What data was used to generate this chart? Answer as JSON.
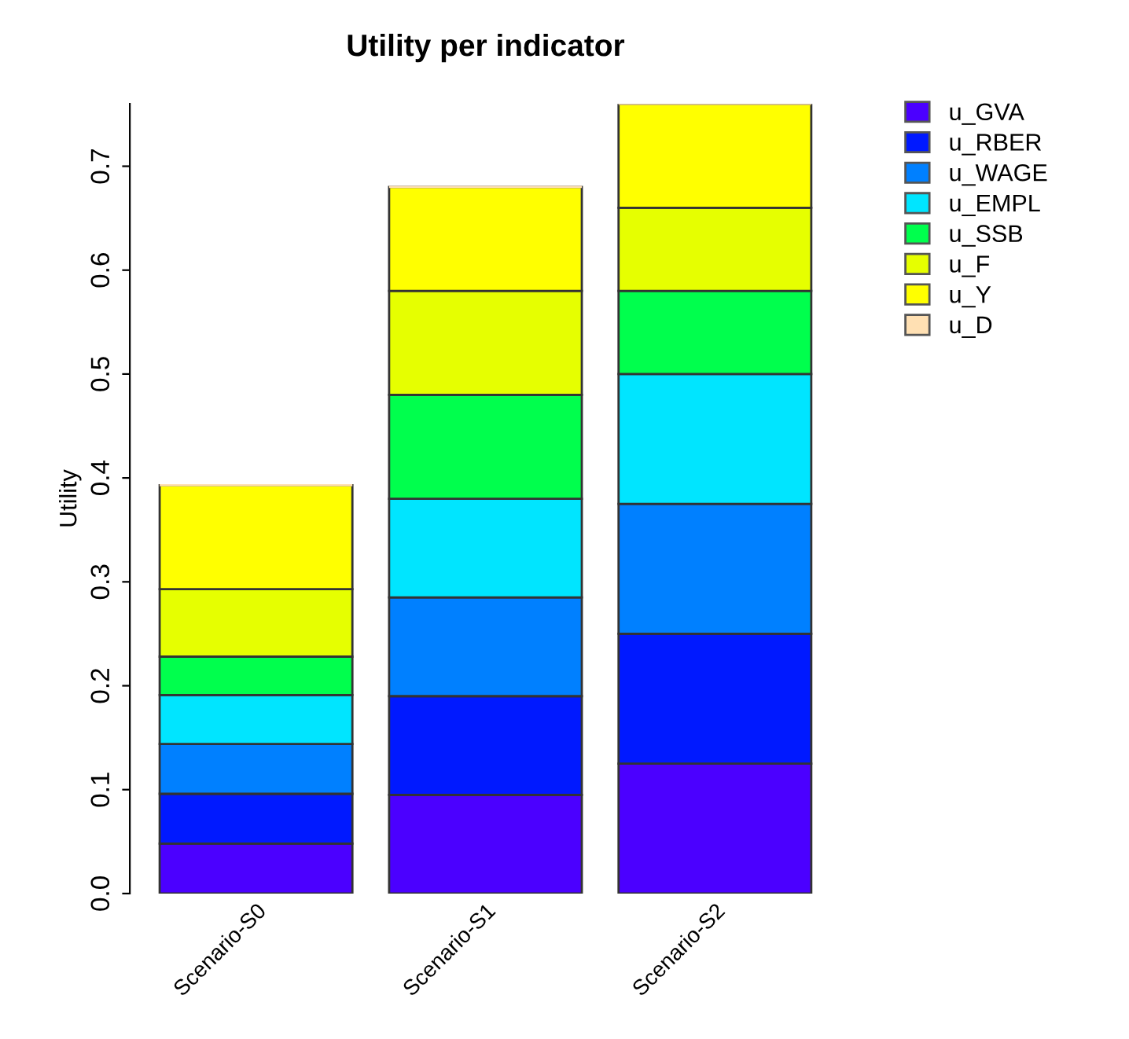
{
  "chart_data": {
    "type": "bar",
    "title": "Utility per indicator",
    "ylabel": "Utility",
    "categories": [
      "Scenario-S0",
      "Scenario-S1",
      "Scenario-S2"
    ],
    "stacked": true,
    "ylim": [
      0,
      0.76
    ],
    "yticks": [
      {
        "value": 0,
        "label": "0.0"
      },
      0.1,
      0.2,
      0.3,
      0.4,
      0.5,
      0.6,
      0.7
    ],
    "grid": false,
    "legend": "right",
    "series": [
      {
        "name": "u_GVA",
        "color": "#4b00ff",
        "values": [
          0.048,
          0.095,
          0.125
        ]
      },
      {
        "name": "u_RBER",
        "color": "#0019ff",
        "values": [
          0.048,
          0.095,
          0.125
        ]
      },
      {
        "name": "u_WAGE",
        "color": "#0080ff",
        "values": [
          0.048,
          0.095,
          0.125
        ]
      },
      {
        "name": "u_EMPL",
        "color": "#00e5ff",
        "values": [
          0.047,
          0.095,
          0.125
        ]
      },
      {
        "name": "u_SSB",
        "color": "#00ff4d",
        "values": [
          0.037,
          0.1,
          0.08
        ]
      },
      {
        "name": "u_F",
        "color": "#e6ff00",
        "values": [
          0.065,
          0.1,
          0.08
        ]
      },
      {
        "name": "u_Y",
        "color": "#ffff00",
        "values": [
          0.1,
          0.1,
          0.1
        ]
      },
      {
        "name": "u_D",
        "color": "#ffe0b3",
        "values": [
          0,
          0,
          0
        ]
      }
    ]
  }
}
